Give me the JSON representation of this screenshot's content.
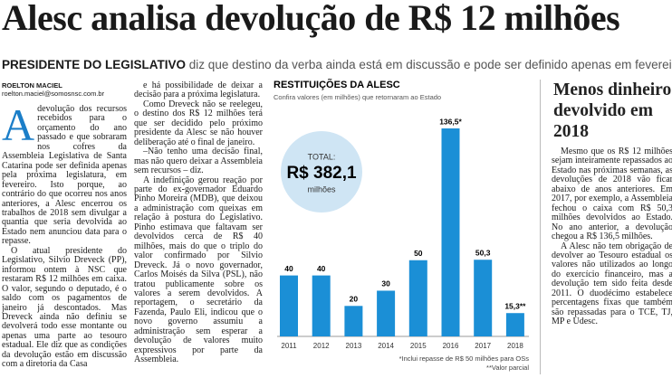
{
  "header": {
    "title": "Alesc analisa devolução de R$ 12 milhões",
    "subhead_lead": "PRESIDENTE DO LEGISLATIVO",
    "subhead_rest": "diz que destino da verba ainda está em discussão e pode ser definido apenas em fevereiro"
  },
  "byline": {
    "name": "ROELTON MACIEL",
    "email": "roelton.maciel@somosnsc.com.br"
  },
  "article": {
    "drop_cap": "A",
    "columns": [
      {
        "paragraphs": [
          "devolução dos recursos recebidos para o orçamento do ano passado e que sobraram nos cofres da Assembleia Legislativa de Santa Catarina pode ser definida apenas pela próxima legislatura, em fevereiro. Isto porque, ao contrário do que ocorreu nos anos anteriores, a Alesc encerrou os trabalhos de 2018 sem divulgar a quantia que seria devolvida ao Estado nem anunciou data para o repasse.",
          "O atual presidente do Legislativo, Silvio Dreveck (PP), informou ontem à NSC que restaram R$ 12 milhões em caixa. O valor, segundo o deputado, é o saldo com os pagamentos de janeiro já descontados. Mas Dreveck ainda não definiu se devolverá todo esse montante ou apenas uma parte ao tesouro estadual. Ele diz que as condições da devolução estão em discussão com a diretoria da Casa"
        ]
      },
      {
        "paragraphs": [
          "e há possibilidade de deixar a decisão para a próxima legislatura.",
          "Como Dreveck não se reelegeu, o destino dos R$ 12 milhões terá que ser decidido pelo próximo presidente da Alesc se não houver deliberação até o final de janeiro.",
          "–Não tenho uma decisão final, mas não quero deixar a Assembleia sem recursos – diz.",
          "A indefinição gerou reação por parte do ex-governador Eduardo Pinho Moreira (MDB), que deixou a administração com queixas em relação à postura do Legislativo. Pinho estimava que faltavam ser devolvidos cerca de R$ 40 milhões, mais do que o triplo do valor confirmado por Silvio Dreveck. Já o novo governador, Carlos Moisés da Silva (PSL), não tratou publicamente sobre os valores a serem devolvidos. A reportagem, o secretário da Fazenda, Paulo Eli, indicou que o novo governo assumiu a administração sem esperar a devolução de valores muito expressivos por parte da Assembleia."
        ]
      }
    ]
  },
  "sidebar": {
    "title": "Menos dinheiro devolvido em 2018",
    "paragraphs": [
      "Mesmo que os R$ 12 milhões sejam inteiramente repassados ao Estado nas próximas semanas, as devoluções de 2018 vão ficar abaixo de anos anteriores. Em 2017, por exemplo, a Assembleia fechou o caixa com R$ 50,3 milhões devolvidos ao Estado. No ano anterior, a devolução chegou a R$ 136,5 milhões.",
      "A Alesc não tem obrigação de devolver ao Tesouro estadual os valores não utilizados ao longo do exercício financeiro, mas a devolução tem sido feita desde 2011. O duodécimo estabelece percentagens fixas que também são repassadas para o TCE, TJ, MP e Udesc."
    ]
  },
  "chart_data": {
    "type": "bar",
    "title": "RESTITUIÇÕES DA ALESC",
    "subtitle": "Confira valores (em milhões) que retornaram ao Estado",
    "total_label": "TOTAL:",
    "total_value": "R$ 382,1",
    "total_unit": "milhões",
    "categories": [
      "2011",
      "2012",
      "2013",
      "2014",
      "2015",
      "2016",
      "2017",
      "2018"
    ],
    "values": [
      40,
      40,
      20,
      30,
      50,
      136.5,
      50.3,
      15.3
    ],
    "value_labels": [
      "40",
      "40",
      "20",
      "30",
      "50",
      "136,5*",
      "50,3",
      "15,3**"
    ],
    "color": "#1b8fd6",
    "notes": [
      "*Inclui repasse de R$ 50 milhões para OSs",
      "**Valor parcial"
    ]
  }
}
